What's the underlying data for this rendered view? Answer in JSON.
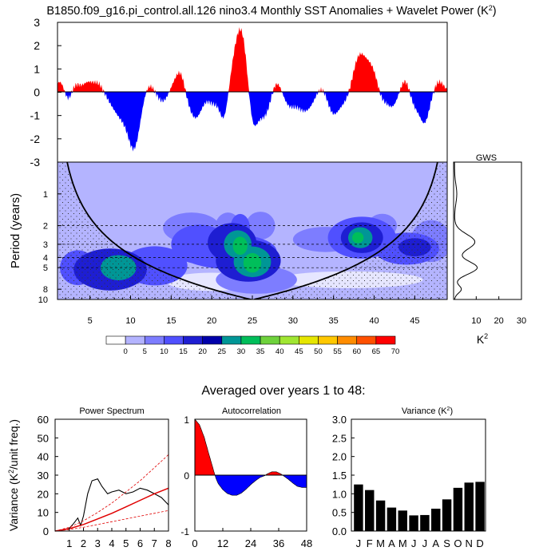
{
  "chart_data": [
    {
      "type": "area",
      "title": "B1850.f09_g16.pi_control.all.126 nino3.4 Monthly SST Anomalies + Wavelet Power (K",
      "title_sup": "2",
      "title_close": ")",
      "ylim": [
        -3,
        3
      ],
      "yticks": [
        "3",
        "2",
        "1",
        "0",
        "-1",
        "-2",
        "-3"
      ],
      "x_years": [
        1,
        49
      ],
      "positive_color": "#ff0000",
      "negative_color": "#0000ff",
      "anomaly_events": [
        {
          "year": 1.3,
          "amp": 0.45,
          "width": 0.5
        },
        {
          "year": 2.3,
          "amp": -0.35,
          "width": 0.4
        },
        {
          "year": 3.3,
          "amp": 0.3,
          "width": 0.5
        },
        {
          "year": 4.7,
          "amp": 0.4,
          "width": 0.6
        },
        {
          "year": 6.0,
          "amp": 0.4,
          "width": 0.6
        },
        {
          "year": 9.0,
          "amp": -1.1,
          "width": 1.2
        },
        {
          "year": 10.5,
          "amp": -1.9,
          "width": 0.7
        },
        {
          "year": 12.3,
          "amp": 0.35,
          "width": 0.6
        },
        {
          "year": 14.0,
          "amp": -0.4,
          "width": 0.7
        },
        {
          "year": 15.4,
          "amp": 0.4,
          "width": 0.6
        },
        {
          "year": 16.2,
          "amp": 0.7,
          "width": 0.5
        },
        {
          "year": 18.0,
          "amp": -1.1,
          "width": 0.8
        },
        {
          "year": 20.2,
          "amp": -0.45,
          "width": 0.6
        },
        {
          "year": 21.5,
          "amp": -1.2,
          "width": 0.5
        },
        {
          "year": 23.6,
          "amp": 2.8,
          "width": 0.9
        },
        {
          "year": 25.0,
          "amp": -1.9,
          "width": 0.6
        },
        {
          "year": 26.5,
          "amp": -1.0,
          "width": 0.7
        },
        {
          "year": 28.0,
          "amp": 0.5,
          "width": 0.6
        },
        {
          "year": 29.5,
          "amp": -0.5,
          "width": 0.7
        },
        {
          "year": 31.5,
          "amp": -0.8,
          "width": 1.0
        },
        {
          "year": 33.5,
          "amp": 0.3,
          "width": 0.6
        },
        {
          "year": 35.0,
          "amp": -0.9,
          "width": 0.7
        },
        {
          "year": 36.5,
          "amp": -0.4,
          "width": 0.7
        },
        {
          "year": 38.2,
          "amp": 1.55,
          "width": 0.8
        },
        {
          "year": 39.7,
          "amp": 0.9,
          "width": 0.7
        },
        {
          "year": 41.0,
          "amp": -0.35,
          "width": 0.5
        },
        {
          "year": 42.2,
          "amp": -0.6,
          "width": 0.6
        },
        {
          "year": 43.8,
          "amp": 0.5,
          "width": 0.5
        },
        {
          "year": 45.0,
          "amp": -0.5,
          "width": 0.5
        },
        {
          "year": 46.2,
          "amp": -1.3,
          "width": 0.6
        },
        {
          "year": 48.0,
          "amp": 0.45,
          "width": 0.6
        }
      ]
    },
    {
      "type": "heatmap",
      "ylabel": "Period (years)",
      "period_range": [
        0.5,
        10
      ],
      "yticks": [
        "1",
        "2",
        "3",
        "4",
        "5",
        "8",
        "10"
      ],
      "xticks": [
        "5",
        "10",
        "15",
        "20",
        "25",
        "30",
        "35",
        "40",
        "45"
      ],
      "x_range": [
        1,
        49
      ],
      "background_color": "#b4b4ff",
      "power_levels": [
        {
          "value": 5,
          "color": "#7d7dff"
        },
        {
          "value": 10,
          "color": "#5050ff"
        },
        {
          "value": 15,
          "color": "#1e1ed2"
        },
        {
          "value": 20,
          "color": "#009696"
        },
        {
          "value": 25,
          "color": "#00be5a"
        },
        {
          "value": 30,
          "color": "#6ed23c"
        }
      ],
      "colorbar": {
        "labels": [
          "0",
          "5",
          "10",
          "15",
          "20",
          "25",
          "30",
          "35",
          "40",
          "45",
          "50",
          "55",
          "60",
          "65",
          "70"
        ],
        "colors": [
          "#ffffff",
          "#b4b4ff",
          "#7d7dff",
          "#5050ff",
          "#1e1ed2",
          "#0000aa",
          "#009696",
          "#00be5a",
          "#6ed23c",
          "#a0e632",
          "#e6e600",
          "#ffc800",
          "#ff8c00",
          "#ff5000",
          "#ff0000"
        ]
      },
      "blobs": [
        {
          "year": 3.5,
          "period": 5.0,
          "rx": 2.2,
          "ry": 0.25,
          "level": 2
        },
        {
          "year": 7.5,
          "period": 5.2,
          "rx": 4.5,
          "ry": 0.3,
          "level": 3
        },
        {
          "year": 8.5,
          "period": 5.0,
          "rx": 2.2,
          "ry": 0.18,
          "level": 4
        },
        {
          "year": 13.0,
          "period": 4.8,
          "rx": 4.0,
          "ry": 0.28,
          "level": 2
        },
        {
          "year": 17.5,
          "period": 2.1,
          "rx": 3.5,
          "ry": 0.22,
          "level": 1
        },
        {
          "year": 18.5,
          "period": 3.0,
          "rx": 3.5,
          "ry": 0.28,
          "level": 2
        },
        {
          "year": 22.0,
          "period": 3.5,
          "rx": 6.0,
          "ry": 0.25,
          "level": 2
        },
        {
          "year": 22.0,
          "period": 2.1,
          "rx": 1.6,
          "ry": 0.22,
          "level": 1
        },
        {
          "year": 23.5,
          "period": 2.1,
          "rx": 1.2,
          "ry": 0.2,
          "level": 2
        },
        {
          "year": 22.5,
          "period": 2.9,
          "rx": 3.0,
          "ry": 0.28,
          "level": 3
        },
        {
          "year": 23.2,
          "period": 3.0,
          "rx": 1.7,
          "ry": 0.2,
          "level": 4
        },
        {
          "year": 23.5,
          "period": 3.1,
          "rx": 0.9,
          "ry": 0.13,
          "level": 5
        },
        {
          "year": 24.5,
          "period": 4.3,
          "rx": 4.0,
          "ry": 0.3,
          "level": 3
        },
        {
          "year": 25.0,
          "period": 4.4,
          "rx": 2.3,
          "ry": 0.22,
          "level": 4
        },
        {
          "year": 25.0,
          "period": 4.5,
          "rx": 1.1,
          "ry": 0.14,
          "level": 5
        },
        {
          "year": 26.0,
          "period": 2.0,
          "rx": 1.8,
          "ry": 0.2,
          "level": 1
        },
        {
          "year": 25.5,
          "period": 6.5,
          "rx": 5.0,
          "ry": 0.2,
          "level": 1
        },
        {
          "year": 34.0,
          "period": 2.7,
          "rx": 4.0,
          "ry": 0.18,
          "level": 1
        },
        {
          "year": 38.5,
          "period": 2.6,
          "rx": 4.2,
          "ry": 0.3,
          "level": 2
        },
        {
          "year": 38.5,
          "period": 2.6,
          "rx": 2.6,
          "ry": 0.22,
          "level": 3
        },
        {
          "year": 38.3,
          "period": 2.6,
          "rx": 1.5,
          "ry": 0.15,
          "level": 4
        },
        {
          "year": 38.0,
          "period": 2.6,
          "rx": 0.7,
          "ry": 0.08,
          "level": 5
        },
        {
          "year": 41.0,
          "period": 2.0,
          "rx": 1.8,
          "ry": 0.17,
          "level": 1
        },
        {
          "year": 44.0,
          "period": 3.3,
          "rx": 4.0,
          "ry": 0.23,
          "level": 2
        },
        {
          "year": 45.0,
          "period": 3.2,
          "rx": 2.0,
          "ry": 0.13,
          "level": 3
        },
        {
          "year": 47.0,
          "period": 2.8,
          "rx": 2.5,
          "ry": 0.3,
          "level": 1
        }
      ],
      "light_regions": [
        {
          "year": 20.0,
          "period": 6.8,
          "rx": 5.5,
          "ry": 0.13
        },
        {
          "year": 37.0,
          "period": 6.5,
          "rx": 9.0,
          "ry": 0.12
        }
      ],
      "dashed_periods": [
        2.0,
        3.0,
        4.0,
        5.0
      ],
      "coi_k": 0.42
    },
    {
      "type": "line",
      "title": "GWS",
      "xticks": [
        "10",
        "20",
        "30"
      ],
      "xlim": [
        0,
        30
      ],
      "xlabel": "K",
      "xlabel_sup": "2",
      "peaks": [
        {
          "period": 1.0,
          "value": 1,
          "width": 0.3
        },
        {
          "period": 2.85,
          "value": 9,
          "width": 0.24
        },
        {
          "period": 5.0,
          "value": 10,
          "width": 0.2
        },
        {
          "period": 8.0,
          "value": 3,
          "width": 0.12
        }
      ]
    },
    {
      "type": "line",
      "heading": "Averaged over years 1 to 48:",
      "title": "Power Spectrum",
      "ylabel": "Variance (K",
      "ylabel_sup": "2",
      "ylabel_tail": "/unit freq.)",
      "xlim": [
        0,
        8
      ],
      "ylim": [
        0,
        60
      ],
      "xticks": [
        "1",
        "2",
        "3",
        "4",
        "5",
        "6",
        "7",
        "8"
      ],
      "yticks": [
        "0",
        "10",
        "20",
        "30",
        "40",
        "50",
        "60"
      ],
      "series": [
        {
          "name": "spectrum",
          "x": [
            0,
            0.5,
            1,
            1.3,
            1.6,
            1.8,
            2.0,
            2.3,
            2.6,
            3.0,
            3.3,
            3.7,
            4.0,
            4.5,
            5.0,
            5.5,
            6.0,
            6.5,
            7.0,
            7.5,
            8.0
          ],
          "y": [
            0,
            0.5,
            1.5,
            4,
            7,
            3,
            8,
            20,
            27,
            28,
            24,
            20,
            21,
            22,
            20,
            21,
            23,
            22,
            20,
            18,
            14
          ]
        },
        {
          "name": "red-noise",
          "x": [
            0,
            1,
            2,
            3,
            4,
            5,
            6,
            7,
            8
          ],
          "y": [
            0,
            1.3,
            3.5,
            6.5,
            9.5,
            13,
            16.5,
            20,
            23
          ]
        },
        {
          "name": "upper-bound",
          "x": [
            0,
            1,
            2,
            3,
            4,
            5,
            6,
            7,
            8
          ],
          "y": [
            0,
            2.0,
            5.5,
            10,
            15,
            21,
            27,
            34,
            41
          ]
        },
        {
          "name": "lower-bound",
          "x": [
            0,
            1,
            2,
            3,
            4,
            5,
            6,
            7,
            8
          ],
          "y": [
            0,
            0.8,
            2.0,
            3.5,
            5,
            6.5,
            8,
            9.5,
            11
          ]
        }
      ]
    },
    {
      "type": "area",
      "title": "Autocorrelation",
      "xlim": [
        0,
        48
      ],
      "ylim": [
        -1,
        1
      ],
      "xticks": [
        "0",
        "12",
        "24",
        "36",
        "48"
      ],
      "yticks": [
        "1",
        "0",
        "-1"
      ],
      "x": [
        0,
        2,
        4,
        6,
        8,
        9,
        10,
        12,
        14,
        16,
        18,
        20,
        22,
        24,
        26,
        28,
        30,
        31,
        33,
        35,
        37,
        38,
        40,
        42,
        44,
        46,
        48
      ],
      "y": [
        1.0,
        0.9,
        0.68,
        0.38,
        0.09,
        -0.05,
        -0.15,
        -0.26,
        -0.33,
        -0.36,
        -0.36,
        -0.32,
        -0.25,
        -0.17,
        -0.1,
        -0.04,
        -0.01,
        0.02,
        0.06,
        0.06,
        0.02,
        -0.01,
        -0.07,
        -0.14,
        -0.2,
        -0.22,
        -0.22
      ]
    },
    {
      "type": "bar",
      "title": "Variance (K",
      "title_sup": "2",
      "title_close": ")",
      "ylim": [
        0,
        3
      ],
      "yticks": [
        "0.0",
        "0.5",
        "1.0",
        "1.5",
        "2.0",
        "2.5",
        "3.0"
      ],
      "categories": [
        "J",
        "F",
        "M",
        "A",
        "M",
        "J",
        "J",
        "A",
        "S",
        "O",
        "N",
        "D"
      ],
      "values": [
        1.25,
        1.1,
        0.82,
        0.63,
        0.55,
        0.42,
        0.43,
        0.6,
        0.85,
        1.16,
        1.3,
        1.32
      ]
    }
  ]
}
